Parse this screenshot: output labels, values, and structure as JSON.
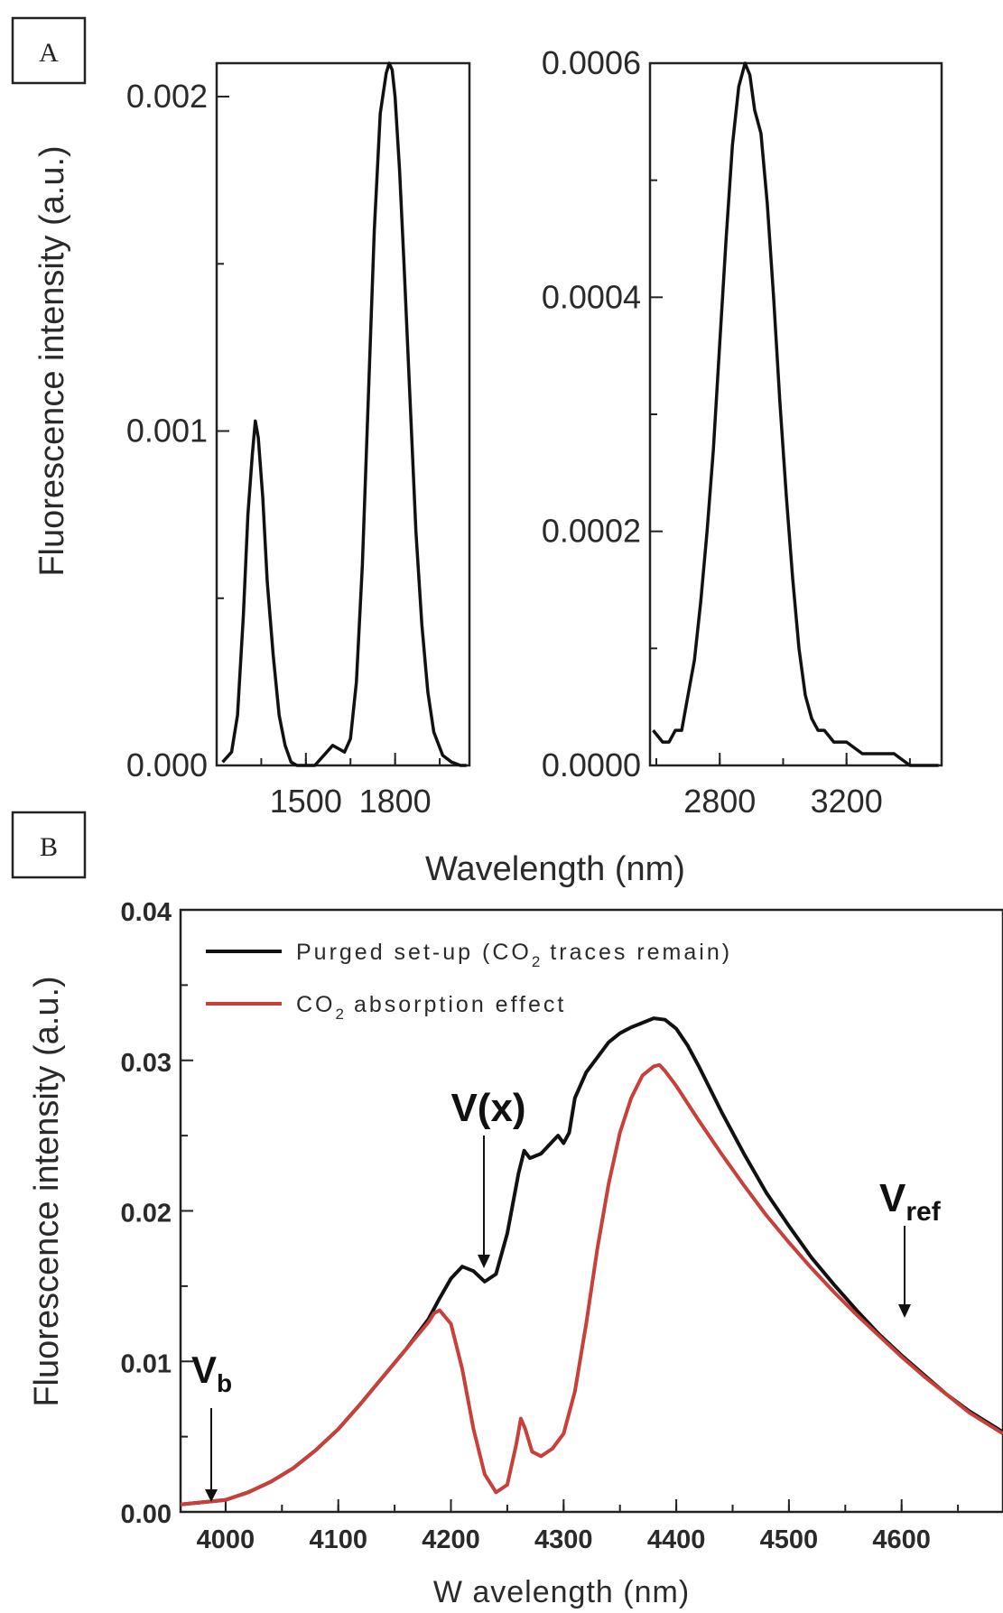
{
  "chart_data": [
    {
      "panel": "A",
      "type": "line",
      "xlim": [
        1200,
        2050
      ],
      "ylim": [
        0,
        0.0021
      ],
      "yticks": [
        "0.000",
        "0.001",
        "0.002"
      ],
      "xticks": [
        "1500",
        "1800"
      ],
      "series": [
        {
          "x": [
            1220,
            1250,
            1270,
            1290,
            1305,
            1320,
            1330,
            1340,
            1355,
            1370,
            1390,
            1410,
            1430,
            1450,
            1470,
            1500,
            1530,
            1560,
            1590,
            1610,
            1630,
            1650,
            1670,
            1690,
            1710,
            1730,
            1750,
            1770,
            1780,
            1790,
            1800,
            1815,
            1830,
            1850,
            1870,
            1890,
            1910,
            1930,
            1960,
            1990,
            2020,
            2040
          ],
          "y": [
            1e-05,
            4e-05,
            0.00015,
            0.00045,
            0.00075,
            0.00093,
            0.00103,
            0.00098,
            0.0008,
            0.00055,
            0.00033,
            0.00015,
            6e-05,
            1e-05,
            0.0,
            -1e-05,
            0.0,
            3e-05,
            6e-05,
            5e-05,
            4e-05,
            8e-05,
            0.00025,
            0.0006,
            0.0011,
            0.0016,
            0.00195,
            0.00207,
            0.0021,
            0.00208,
            0.002,
            0.00178,
            0.0015,
            0.0011,
            0.0007,
            0.00042,
            0.00022,
            0.0001,
            3e-05,
            1e-05,
            0.0,
            0.0
          ]
        }
      ]
    },
    {
      "panel": "A-right",
      "type": "line",
      "xlim": [
        2580,
        3500
      ],
      "ylim": [
        0,
        0.0006
      ],
      "yticks": [
        "0.0000",
        "0.0002",
        "0.0004",
        "0.0006"
      ],
      "xticks": [
        "2800",
        "3200"
      ],
      "series": [
        {
          "x": [
            2590,
            2620,
            2640,
            2660,
            2680,
            2700,
            2720,
            2740,
            2760,
            2780,
            2800,
            2820,
            2840,
            2860,
            2880,
            2895,
            2910,
            2930,
            2950,
            2970,
            2990,
            3010,
            3030,
            3050,
            3070,
            3090,
            3110,
            3130,
            3160,
            3200,
            3250,
            3300,
            3350,
            3400,
            3450,
            3490
          ],
          "y": [
            3e-05,
            2e-05,
            2e-05,
            3e-05,
            3e-05,
            6e-05,
            9e-05,
            0.00014,
            0.0002,
            0.00027,
            0.00036,
            0.00045,
            0.00053,
            0.00058,
            0.0006,
            0.00059,
            0.00056,
            0.00054,
            0.00048,
            0.0004,
            0.00031,
            0.00023,
            0.00016,
            0.0001,
            6e-05,
            4e-05,
            3e-05,
            3e-05,
            2e-05,
            2e-05,
            1e-05,
            1e-05,
            1e-05,
            0.0,
            0.0,
            0.0
          ]
        }
      ]
    },
    {
      "panel": "B",
      "type": "line",
      "xlim": [
        3960,
        4690
      ],
      "ylim": [
        0,
        0.04
      ],
      "xticks": [
        "4000",
        "4100",
        "4200",
        "4300",
        "4400",
        "4500",
        "4600"
      ],
      "yticks": [
        "0.00",
        "0.01",
        "0.02",
        "0.03",
        "0.04"
      ],
      "xlabel": "W avelength (nm)",
      "ylabel": "Fluorescence intensity (a.u.)",
      "legend_position": "top-left",
      "legend": [
        "Purged set-up (CO",
        "traces remain)",
        "CO",
        "absorption effect"
      ],
      "legend_subscript": "2",
      "annotations": {
        "vb": "V",
        "vb_sub": "b",
        "vx": "V(x)",
        "vref": "V",
        "vref_sub": "ref"
      },
      "series": [
        {
          "color": "#111111",
          "x": [
            3960,
            4000,
            4020,
            4040,
            4060,
            4080,
            4100,
            4120,
            4140,
            4160,
            4180,
            4190,
            4200,
            4210,
            4220,
            4230,
            4240,
            4250,
            4260,
            4265,
            4270,
            4280,
            4290,
            4295,
            4300,
            4305,
            4310,
            4320,
            4330,
            4340,
            4350,
            4360,
            4370,
            4380,
            4390,
            4400,
            4410,
            4420,
            4440,
            4460,
            4480,
            4500,
            4520,
            4540,
            4560,
            4580,
            4600,
            4620,
            4640,
            4660,
            4690
          ],
          "y": [
            0.0005,
            0.0008,
            0.0013,
            0.002,
            0.0029,
            0.0041,
            0.0055,
            0.0072,
            0.009,
            0.0108,
            0.0128,
            0.0142,
            0.0155,
            0.0163,
            0.016,
            0.0153,
            0.0158,
            0.0185,
            0.0225,
            0.024,
            0.0235,
            0.0238,
            0.0246,
            0.025,
            0.0245,
            0.0252,
            0.0275,
            0.0292,
            0.0302,
            0.0312,
            0.0318,
            0.0322,
            0.0325,
            0.0328,
            0.0327,
            0.0321,
            0.031,
            0.0296,
            0.0266,
            0.0238,
            0.0212,
            0.019,
            0.0169,
            0.0151,
            0.0134,
            0.0118,
            0.0104,
            0.0091,
            0.0078,
            0.0067,
            0.0053
          ]
        },
        {
          "color": "#c8403a",
          "x": [
            3960,
            4000,
            4020,
            4040,
            4060,
            4080,
            4100,
            4120,
            4140,
            4160,
            4180,
            4185,
            4190,
            4200,
            4210,
            4220,
            4230,
            4240,
            4250,
            4258,
            4262,
            4266,
            4272,
            4280,
            4290,
            4300,
            4310,
            4320,
            4330,
            4340,
            4350,
            4360,
            4370,
            4380,
            4385,
            4390,
            4400,
            4420,
            4440,
            4460,
            4480,
            4500,
            4520,
            4540,
            4560,
            4580,
            4600,
            4620,
            4640,
            4660,
            4690
          ],
          "y": [
            0.0005,
            0.0008,
            0.0013,
            0.002,
            0.0029,
            0.0041,
            0.0055,
            0.0072,
            0.009,
            0.0108,
            0.0126,
            0.0132,
            0.0134,
            0.0125,
            0.0095,
            0.0055,
            0.0025,
            0.0013,
            0.0018,
            0.0045,
            0.0062,
            0.0055,
            0.004,
            0.0037,
            0.0042,
            0.0052,
            0.008,
            0.0125,
            0.0175,
            0.0218,
            0.0252,
            0.0275,
            0.029,
            0.0296,
            0.0297,
            0.0293,
            0.0283,
            0.026,
            0.0238,
            0.0217,
            0.0197,
            0.0179,
            0.0162,
            0.0146,
            0.0131,
            0.0117,
            0.0103,
            0.009,
            0.0078,
            0.0066,
            0.0052
          ]
        }
      ]
    }
  ],
  "figure": {
    "panel_a_label": "A",
    "panel_b_label": "B",
    "ylabel_a": "Fluorescence intensity (a.u.)",
    "xlabel_a": "Wavelength (nm)"
  }
}
